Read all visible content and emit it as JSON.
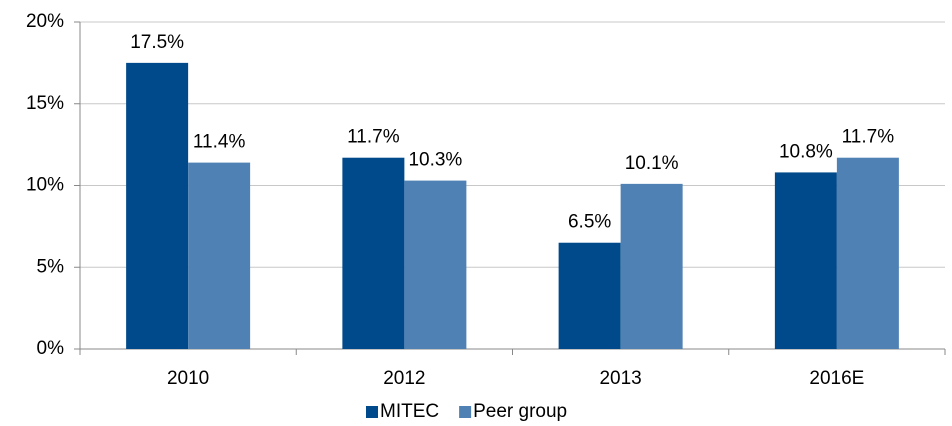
{
  "chart_data": {
    "type": "bar",
    "categories": [
      "2010",
      "2012",
      "2013",
      "2016E"
    ],
    "series": [
      {
        "name": "MITEC",
        "color": "#004a8b",
        "values": [
          17.5,
          11.7,
          6.5,
          10.8
        ],
        "value_labels": [
          "17.5%",
          "11.7%",
          "6.5%",
          "10.8%"
        ]
      },
      {
        "name": "Peer group",
        "color": "#4f81b4",
        "values": [
          11.4,
          10.3,
          10.1,
          11.7
        ],
        "value_labels": [
          "11.4%",
          "10.3%",
          "10.1%",
          "11.7%"
        ]
      }
    ],
    "ylim": [
      0,
      20
    ],
    "yticks": [
      {
        "value": 0,
        "label": "0%"
      },
      {
        "value": 5,
        "label": "5%"
      },
      {
        "value": 10,
        "label": "10%"
      },
      {
        "value": 15,
        "label": "15%"
      },
      {
        "value": 20,
        "label": "20%"
      }
    ],
    "grid": true,
    "legend": "bottom"
  }
}
